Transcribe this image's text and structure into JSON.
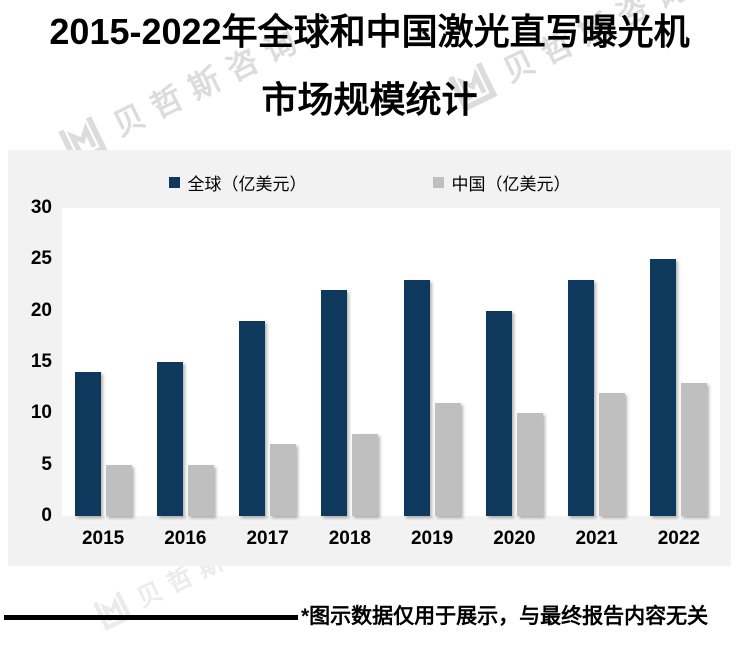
{
  "page": {
    "title_line1": "2015-2022年全球和中国激光直写曝光机",
    "title_line2": "市场规模统计",
    "footnote": "*图示数据仅用于展示，与最终报告内容无关",
    "watermark_text": "贝哲斯咨询"
  },
  "colors": {
    "global_series": "#0e385c",
    "china_series": "#bfbfbf",
    "chart_background": "#f2f2f2",
    "plot_background": "#ffffff",
    "text": "#000000"
  },
  "chart_data": {
    "type": "bar",
    "title": "2015-2022年全球和中国激光直写曝光机市场规模统计",
    "categories": [
      "2015",
      "2016",
      "2017",
      "2018",
      "2019",
      "2020",
      "2021",
      "2022"
    ],
    "series": [
      {
        "name": "全球（亿美元）",
        "color": "#0e385c",
        "values": [
          14,
          15,
          19,
          22,
          23,
          20,
          23,
          25
        ]
      },
      {
        "name": "中国（亿美元）",
        "color": "#bfbfbf",
        "values": [
          5,
          5,
          7,
          8,
          11,
          10,
          12,
          13
        ]
      }
    ],
    "ylim": [
      0,
      30
    ],
    "yticks": [
      0,
      5,
      10,
      15,
      20,
      25,
      30
    ],
    "grid": false,
    "legend_position": "top",
    "xlabel": "",
    "ylabel": ""
  }
}
